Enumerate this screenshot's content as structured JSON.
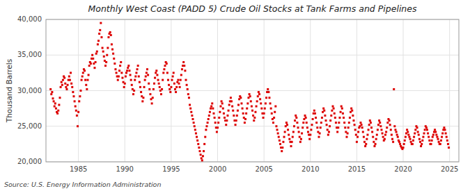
{
  "chart_data": {
    "type": "scatter",
    "title": "Monthly West Coast (PADD 5) Crude Oil Stocks at Tank Farms and Pipelines",
    "y_label": "Thousand Barrels",
    "annotations": [
      "Source: U.S. Energy Information Administration"
    ],
    "color": "#dd0000",
    "marker": "square",
    "grid": true,
    "xlim": [
      1981.5,
      2026.0
    ],
    "xticks": [
      1985,
      1990,
      1995,
      2000,
      2005,
      2010,
      2015,
      2020,
      2025
    ],
    "ylim": [
      20000,
      40000
    ],
    "yticks": [
      {
        "value": 20000,
        "label": "20,000"
      },
      {
        "value": 25000,
        "label": "25,000"
      },
      {
        "value": 30000,
        "label": "30,000"
      },
      {
        "value": 35000,
        "label": "35,000"
      },
      {
        "value": 40000,
        "label": "40,000"
      }
    ],
    "x": [
      1982,
      1982.0833333333333,
      1982.1666666666667,
      1982.25,
      1982.3333333333333,
      1982.4166666666667,
      1982.5,
      1982.5833333333333,
      1982.6666666666667,
      1982.75,
      1982.8333333333333,
      1982.9166666666667,
      1983,
      1983.0833333333333,
      1983.1666666666667,
      1983.25,
      1983.3333333333333,
      1983.4166666666667,
      1983.5,
      1983.5833333333333,
      1983.6666666666667,
      1983.75,
      1983.8333333333333,
      1983.9166666666667,
      1984,
      1984.0833333333333,
      1984.1666666666667,
      1984.25,
      1984.3333333333333,
      1984.4166666666667,
      1984.5,
      1984.5833333333333,
      1984.6666666666667,
      1984.75,
      1984.8333333333333,
      1984.9166666666667,
      1985,
      1985.0833333333333,
      1985.1666666666667,
      1985.25,
      1985.3333333333333,
      1985.4166666666667,
      1985.5,
      1985.5833333333333,
      1985.6666666666667,
      1985.75,
      1985.8333333333333,
      1985.9166666666667,
      1986,
      1986.0833333333333,
      1986.1666666666667,
      1986.25,
      1986.3333333333333,
      1986.4166666666667,
      1986.5,
      1986.5833333333333,
      1986.6666666666667,
      1986.75,
      1986.8333333333333,
      1986.9166666666667,
      1987,
      1987.0833333333333,
      1987.1666666666667,
      1987.25,
      1987.3333333333333,
      1987.4166666666667,
      1987.5,
      1987.5833333333333,
      1987.6666666666667,
      1987.75,
      1987.8333333333333,
      1987.9166666666667,
      1988,
      1988.0833333333333,
      1988.1666666666667,
      1988.25,
      1988.3333333333333,
      1988.4166666666667,
      1988.5,
      1988.5833333333333,
      1988.6666666666667,
      1988.75,
      1988.8333333333333,
      1988.9166666666667,
      1989,
      1989.0833333333333,
      1989.1666666666667,
      1989.25,
      1989.3333333333333,
      1989.4166666666667,
      1989.5,
      1989.5833333333333,
      1989.6666666666667,
      1989.75,
      1989.8333333333333,
      1989.9166666666667,
      1990,
      1990.0833333333333,
      1990.1666666666667,
      1990.25,
      1990.3333333333333,
      1990.4166666666667,
      1990.5,
      1990.5833333333333,
      1990.6666666666667,
      1990.75,
      1990.8333333333333,
      1990.9166666666667,
      1991,
      1991.0833333333333,
      1991.1666666666667,
      1991.25,
      1991.3333333333333,
      1991.4166666666667,
      1991.5,
      1991.5833333333333,
      1991.6666666666667,
      1991.75,
      1991.8333333333333,
      1991.9166666666667,
      1992,
      1992.0833333333333,
      1992.1666666666667,
      1992.25,
      1992.3333333333333,
      1992.4166666666667,
      1992.5,
      1992.5833333333333,
      1992.6666666666667,
      1992.75,
      1992.8333333333333,
      1992.9166666666667,
      1993,
      1993.0833333333333,
      1993.1666666666667,
      1993.25,
      1993.3333333333333,
      1993.4166666666667,
      1993.5,
      1993.5833333333333,
      1993.6666666666667,
      1993.75,
      1993.8333333333333,
      1993.9166666666667,
      1994,
      1994.0833333333333,
      1994.1666666666667,
      1994.25,
      1994.3333333333333,
      1994.4166666666667,
      1994.5,
      1994.5833333333333,
      1994.6666666666667,
      1994.75,
      1994.8333333333333,
      1994.9166666666667,
      1995,
      1995.0833333333333,
      1995.1666666666667,
      1995.25,
      1995.3333333333333,
      1995.4166666666667,
      1995.5,
      1995.5833333333333,
      1995.6666666666667,
      1995.75,
      1995.8333333333333,
      1995.9166666666667,
      1996,
      1996.0833333333333,
      1996.1666666666667,
      1996.25,
      1996.3333333333333,
      1996.4166666666667,
      1996.5,
      1996.5833333333333,
      1996.6666666666667,
      1996.75,
      1996.8333333333333,
      1996.9166666666667,
      1997,
      1997.0833333333333,
      1997.1666666666667,
      1997.25,
      1997.3333333333333,
      1997.4166666666667,
      1997.5,
      1997.5833333333333,
      1997.6666666666667,
      1997.75,
      1997.8333333333333,
      1997.9166666666667,
      1998,
      1998.0833333333333,
      1998.1666666666667,
      1998.25,
      1998.3333333333333,
      1998.4166666666667,
      1998.5,
      1998.5833333333333,
      1998.6666666666667,
      1998.75,
      1998.8333333333333,
      1998.9166666666667,
      1999,
      1999.0833333333333,
      1999.1666666666667,
      1999.25,
      1999.3333333333333,
      1999.4166666666667,
      1999.5,
      1999.5833333333333,
      1999.6666666666667,
      1999.75,
      1999.8333333333333,
      1999.9166666666667,
      2000,
      2000.0833333333333,
      2000.1666666666667,
      2000.25,
      2000.3333333333333,
      2000.4166666666667,
      2000.5,
      2000.5833333333333,
      2000.6666666666667,
      2000.75,
      2000.8333333333333,
      2000.9166666666667,
      2001,
      2001.0833333333333,
      2001.1666666666667,
      2001.25,
      2001.3333333333333,
      2001.4166666666667,
      2001.5,
      2001.5833333333333,
      2001.6666666666667,
      2001.75,
      2001.8333333333333,
      2001.9166666666667,
      2002,
      2002.0833333333333,
      2002.1666666666667,
      2002.25,
      2002.3333333333333,
      2002.4166666666667,
      2002.5,
      2002.5833333333333,
      2002.6666666666667,
      2002.75,
      2002.8333333333333,
      2002.9166666666667,
      2003,
      2003.0833333333333,
      2003.1666666666667,
      2003.25,
      2003.3333333333333,
      2003.4166666666667,
      2003.5,
      2003.5833333333333,
      2003.6666666666667,
      2003.75,
      2003.8333333333333,
      2003.9166666666667,
      2004,
      2004.0833333333333,
      2004.1666666666667,
      2004.25,
      2004.3333333333333,
      2004.4166666666667,
      2004.5,
      2004.5833333333333,
      2004.6666666666667,
      2004.75,
      2004.8333333333333,
      2004.9166666666667,
      2005,
      2005.0833333333333,
      2005.1666666666667,
      2005.25,
      2005.3333333333333,
      2005.4166666666667,
      2005.5,
      2005.5833333333333,
      2005.6666666666667,
      2005.75,
      2005.8333333333333,
      2005.9166666666667,
      2006,
      2006.0833333333333,
      2006.1666666666667,
      2006.25,
      2006.3333333333333,
      2006.4166666666667,
      2006.5,
      2006.5833333333333,
      2006.6666666666667,
      2006.75,
      2006.8333333333333,
      2006.9166666666667,
      2007,
      2007.0833333333333,
      2007.1666666666667,
      2007.25,
      2007.3333333333333,
      2007.4166666666667,
      2007.5,
      2007.5833333333333,
      2007.6666666666667,
      2007.75,
      2007.8333333333333,
      2007.9166666666667,
      2008,
      2008.0833333333333,
      2008.1666666666667,
      2008.25,
      2008.3333333333333,
      2008.4166666666667,
      2008.5,
      2008.5833333333333,
      2008.6666666666667,
      2008.75,
      2008.8333333333333,
      2008.9166666666667,
      2009,
      2009.0833333333333,
      2009.1666666666667,
      2009.25,
      2009.3333333333333,
      2009.4166666666667,
      2009.5,
      2009.5833333333333,
      2009.6666666666667,
      2009.75,
      2009.8333333333333,
      2009.9166666666667,
      2010,
      2010.0833333333333,
      2010.1666666666667,
      2010.25,
      2010.3333333333333,
      2010.4166666666667,
      2010.5,
      2010.5833333333333,
      2010.6666666666667,
      2010.75,
      2010.8333333333333,
      2010.9166666666667,
      2011,
      2011.0833333333333,
      2011.1666666666667,
      2011.25,
      2011.3333333333333,
      2011.4166666666667,
      2011.5,
      2011.5833333333333,
      2011.6666666666667,
      2011.75,
      2011.8333333333333,
      2011.9166666666667,
      2012,
      2012.0833333333333,
      2012.1666666666667,
      2012.25,
      2012.3333333333333,
      2012.4166666666667,
      2012.5,
      2012.5833333333333,
      2012.6666666666667,
      2012.75,
      2012.8333333333333,
      2012.9166666666667,
      2013,
      2013.0833333333333,
      2013.1666666666667,
      2013.25,
      2013.3333333333333,
      2013.4166666666667,
      2013.5,
      2013.5833333333333,
      2013.6666666666667,
      2013.75,
      2013.8333333333333,
      2013.9166666666667,
      2014,
      2014.0833333333333,
      2014.1666666666667,
      2014.25,
      2014.3333333333333,
      2014.4166666666667,
      2014.5,
      2014.5833333333333,
      2014.6666666666667,
      2014.75,
      2014.8333333333333,
      2014.9166666666667,
      2015,
      2015.0833333333333,
      2015.1666666666667,
      2015.25,
      2015.3333333333333,
      2015.4166666666667,
      2015.5,
      2015.5833333333333,
      2015.6666666666667,
      2015.75,
      2015.8333333333333,
      2015.9166666666667,
      2016,
      2016.0833333333333,
      2016.1666666666667,
      2016.25,
      2016.3333333333333,
      2016.4166666666667,
      2016.5,
      2016.5833333333333,
      2016.6666666666667,
      2016.75,
      2016.8333333333333,
      2016.9166666666667,
      2017,
      2017.0833333333333,
      2017.1666666666667,
      2017.25,
      2017.3333333333333,
      2017.4166666666667,
      2017.5,
      2017.5833333333333,
      2017.6666666666667,
      2017.75,
      2017.8333333333333,
      2017.9166666666667,
      2018,
      2018.0833333333333,
      2018.1666666666667,
      2018.25,
      2018.3333333333333,
      2018.4166666666667,
      2018.5,
      2018.5833333333333,
      2018.6666666666667,
      2018.75,
      2018.8333333333333,
      2018.9166666666667,
      2019,
      2019.0833333333333,
      2019.1666666666667,
      2019.25,
      2019.3333333333333,
      2019.4166666666667,
      2019.5,
      2019.5833333333333,
      2019.6666666666667,
      2019.75,
      2019.8333333333333,
      2019.9166666666667,
      2020,
      2020.0833333333333,
      2020.1666666666667,
      2020.25,
      2020.3333333333333,
      2020.4166666666667,
      2020.5,
      2020.5833333333333,
      2020.6666666666667,
      2020.75,
      2020.8333333333333,
      2020.9166666666667,
      2021,
      2021.0833333333333,
      2021.1666666666667,
      2021.25,
      2021.3333333333333,
      2021.4166666666667,
      2021.5,
      2021.5833333333333,
      2021.6666666666667,
      2021.75,
      2021.8333333333333,
      2021.9166666666667,
      2022,
      2022.0833333333333,
      2022.1666666666667,
      2022.25,
      2022.3333333333333,
      2022.4166666666667,
      2022.5,
      2022.5833333333333,
      2022.6666666666667,
      2022.75,
      2022.8333333333333,
      2022.9166666666667,
      2023,
      2023.0833333333333,
      2023.1666666666667,
      2023.25,
      2023.3333333333333,
      2023.4166666666667,
      2023.5,
      2023.5833333333333,
      2023.6666666666667,
      2023.75,
      2023.8333333333333,
      2023.9166666666667,
      2024,
      2024.0833333333333,
      2024.1666666666667,
      2024.25,
      2024.3333333333333,
      2024.4166666666667,
      2024.5,
      2024.5833333333333,
      2024.6666666666667,
      2024.75,
      2024.8333333333333,
      2024.9166666666667
    ],
    "values": [
      30200,
      29500,
      29800,
      28900,
      28500,
      27800,
      28200,
      27500,
      27000,
      26800,
      27200,
      28000,
      29000,
      30500,
      31200,
      30800,
      31500,
      32000,
      31800,
      31000,
      30500,
      30200,
      30800,
      31500,
      32000,
      31500,
      32500,
      31000,
      30500,
      29800,
      29200,
      28500,
      27800,
      27200,
      26500,
      25000,
      27000,
      28500,
      29200,
      30000,
      31500,
      32000,
      32500,
      33000,
      32800,
      31500,
      30800,
      30200,
      31500,
      32200,
      33500,
      34000,
      33800,
      34500,
      35000,
      34500,
      33800,
      33200,
      34000,
      35200,
      35500,
      36500,
      37000,
      38000,
      38500,
      39500,
      37500,
      36000,
      35500,
      34800,
      34200,
      33500,
      34000,
      35000,
      36000,
      37500,
      38000,
      38200,
      37800,
      36500,
      35800,
      35200,
      34500,
      33800,
      33000,
      32500,
      32000,
      31500,
      32000,
      32800,
      33500,
      34000,
      32500,
      31800,
      31200,
      30500,
      31000,
      32000,
      32500,
      32800,
      33200,
      33500,
      32800,
      32200,
      31500,
      30800,
      30200,
      29500,
      30000,
      31500,
      32000,
      32500,
      33000,
      33500,
      32000,
      31200,
      30500,
      29800,
      29200,
      28500,
      29000,
      30500,
      31500,
      32000,
      32500,
      33000,
      32200,
      31000,
      30200,
      29500,
      28800,
      28200,
      29000,
      30200,
      31000,
      31800,
      32500,
      32800,
      32200,
      31500,
      31000,
      30500,
      30000,
      29500,
      30200,
      31500,
      32500,
      33000,
      33500,
      34000,
      33800,
      32500,
      31500,
      30800,
      30200,
      29800,
      30500,
      31500,
      32000,
      32500,
      31000,
      30200,
      29800,
      30500,
      31200,
      31500,
      31000,
      30500,
      31500,
      32200,
      33000,
      33500,
      34000,
      33500,
      32800,
      31500,
      30800,
      30200,
      29500,
      29000,
      28000,
      27500,
      27000,
      26500,
      26000,
      25500,
      25000,
      24500,
      24000,
      23500,
      23000,
      22500,
      22000,
      21500,
      21000,
      20500,
      20200,
      20800,
      21500,
      22500,
      23500,
      24500,
      25000,
      25500,
      26000,
      26500,
      27000,
      27500,
      27800,
      28200,
      27500,
      26800,
      26200,
      25500,
      24800,
      24200,
      24800,
      25500,
      26200,
      27000,
      27800,
      28500,
      28200,
      27500,
      26800,
      26200,
      25800,
      25200,
      25800,
      26500,
      27200,
      28000,
      28500,
      29000,
      28500,
      27800,
      27200,
      26500,
      25800,
      25200,
      25800,
      26500,
      27200,
      28000,
      28800,
      29200,
      29000,
      28200,
      27500,
      26800,
      26200,
      25500,
      26000,
      26800,
      27500,
      28200,
      29000,
      29500,
      29200,
      28500,
      27800,
      27200,
      26500,
      25800,
      26200,
      27000,
      27800,
      28500,
      29200,
      29800,
      29500,
      28800,
      28200,
      27500,
      26800,
      26200,
      26800,
      27500,
      28200,
      29000,
      29800,
      30200,
      29800,
      29000,
      28200,
      27500,
      26800,
      26000,
      25500,
      26200,
      27000,
      27800,
      25000,
      24500,
      24000,
      23500,
      23000,
      22500,
      22000,
      21500,
      22000,
      22800,
      23500,
      24200,
      25000,
      25500,
      25200,
      24500,
      23800,
      23200,
      22800,
      22200,
      22800,
      23500,
      24200,
      25000,
      25800,
      26500,
      26200,
      25500,
      24800,
      24200,
      23500,
      22800,
      23200,
      24000,
      24800,
      25500,
      26000,
      26500,
      26200,
      25500,
      24800,
      24200,
      23800,
      23200,
      23800,
      24500,
      25200,
      26000,
      26800,
      27200,
      26800,
      26200,
      25500,
      24800,
      24200,
      23500,
      24000,
      24800,
      25500,
      26200,
      27000,
      27500,
      27200,
      26500,
      25800,
      25200,
      24500,
      23800,
      24200,
      25000,
      25800,
      26500,
      27200,
      27800,
      27500,
      26800,
      26200,
      25500,
      24800,
      24200,
      24800,
      25500,
      26200,
      27000,
      27800,
      27500,
      26800,
      26200,
      25500,
      24800,
      24200,
      23500,
      24000,
      24800,
      25500,
      26200,
      27000,
      27500,
      27200,
      26500,
      25800,
      25200,
      24500,
      23800,
      22800,
      23500,
      24200,
      24800,
      25000,
      25500,
      25200,
      24800,
      24200,
      23500,
      22800,
      22200,
      22500,
      23200,
      23800,
      24500,
      25200,
      25800,
      25500,
      24800,
      24200,
      23500,
      22800,
      22200,
      22500,
      23200,
      23800,
      24500,
      25200,
      25800,
      25500,
      25000,
      24500,
      24000,
      23500,
      23000,
      23200,
      23800,
      24200,
      24800,
      25500,
      26000,
      25800,
      25200,
      24500,
      23800,
      23200,
      22800,
      30200,
      25000,
      24500,
      24200,
      23800,
      23500,
      23000,
      22800,
      22500,
      22200,
      22000,
      21800,
      22000,
      22500,
      23000,
      23500,
      24000,
      24500,
      24200,
      23800,
      23500,
      23200,
      22800,
      22500,
      22500,
      23000,
      23500,
      24000,
      24500,
      25000,
      24800,
      24200,
      23800,
      23200,
      22800,
      22200,
      22500,
      23000,
      23500,
      24000,
      24500,
      25000,
      24800,
      24500,
      24000,
      23500,
      23000,
      22500,
      22500,
      23000,
      23500,
      23800,
      24200,
      24500,
      24200,
      23800,
      23500,
      23200,
      22800,
      22500,
      22500,
      23000,
      23500,
      24000,
      24500,
      24800,
      24500,
      24000,
      23500,
      23000,
      22500,
      22000
    ]
  }
}
